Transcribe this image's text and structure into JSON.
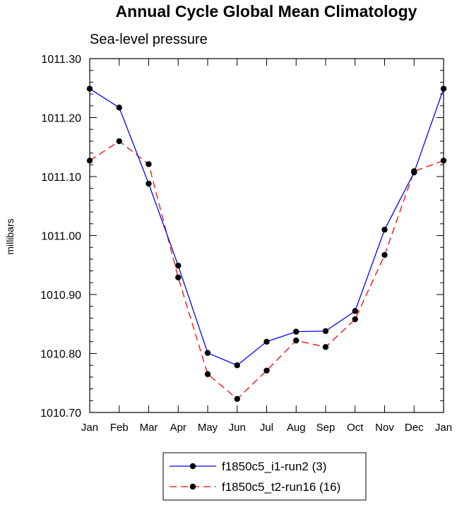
{
  "chart_data": {
    "type": "line",
    "title": "Annual Cycle Global Mean Climatology",
    "subtitle": "Sea-level pressure",
    "xlabel": "",
    "ylabel": "millibars",
    "categories": [
      "Jan",
      "Feb",
      "Mar",
      "Apr",
      "May",
      "Jun",
      "Jul",
      "Aug",
      "Sep",
      "Oct",
      "Nov",
      "Dec",
      "Jan"
    ],
    "ylim": [
      1010.7,
      1011.3
    ],
    "yticks": [
      1010.7,
      1010.8,
      1010.9,
      1011.0,
      1011.1,
      1011.2,
      1011.3
    ],
    "ytick_labels": [
      "1010.70",
      "1010.80",
      "1010.90",
      "1011.00",
      "1011.10",
      "1011.20",
      "1011.30"
    ],
    "yminor_step": 0.02,
    "grid": false,
    "legend_position": "bottom-center",
    "series": [
      {
        "name": "f1850c5_i1-run2 (3)",
        "color": "#0000ff",
        "dash": "solid",
        "marker": "circle",
        "values": [
          1011.249,
          1011.217,
          1011.088,
          1010.949,
          1010.801,
          1010.78,
          1010.82,
          1010.837,
          1010.838,
          1010.872,
          1011.01,
          1011.107,
          1011.249
        ]
      },
      {
        "name": "f1850c5_t2-run16 (16)",
        "color": "#ff0000",
        "dash": "dashed",
        "marker": "circle",
        "values": [
          1011.127,
          1011.16,
          1011.121,
          1010.929,
          1010.765,
          1010.723,
          1010.771,
          1010.822,
          1010.811,
          1010.858,
          1010.967,
          1011.109,
          1011.127
        ]
      }
    ]
  }
}
